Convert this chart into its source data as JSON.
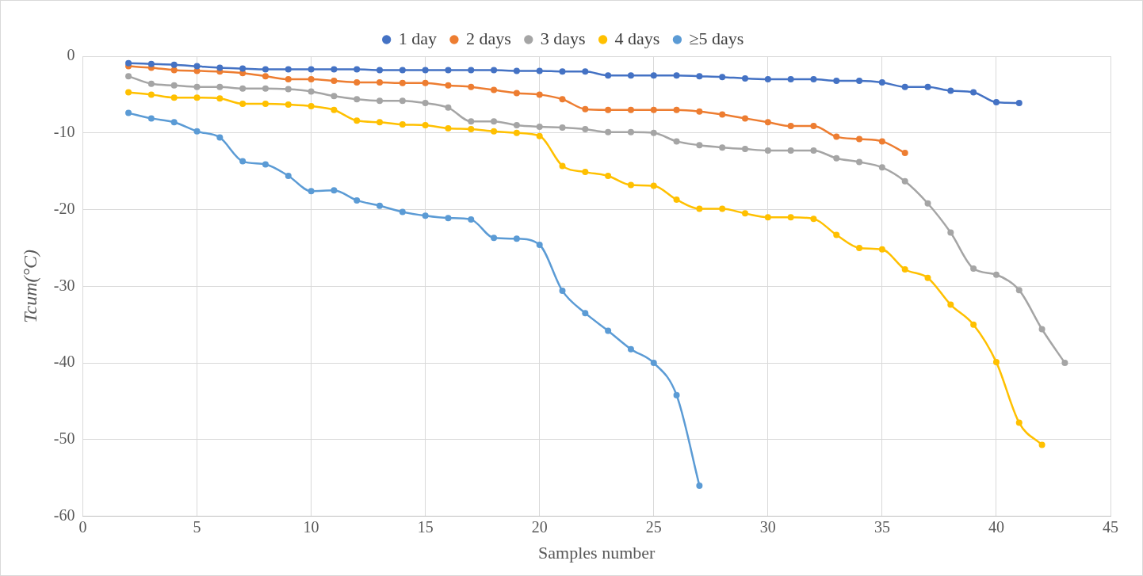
{
  "chart_data": {
    "type": "line",
    "xlabel": "Samples number",
    "ylabel": "Tcum(°C)",
    "xlim": [
      0,
      45
    ],
    "xticks": [
      0,
      5,
      10,
      15,
      20,
      25,
      30,
      35,
      40,
      45
    ],
    "ylim": [
      -60,
      0
    ],
    "yticks": [
      -60,
      -50,
      -40,
      -30,
      -20,
      -10,
      0
    ],
    "grid": true,
    "legend": "top",
    "marker": "circle",
    "line_style": "solid",
    "series": [
      {
        "name": "1 day",
        "color": "#4472c4",
        "x": [
          2,
          3,
          4,
          5,
          6,
          7,
          8,
          9,
          10,
          11,
          12,
          13,
          14,
          15,
          16,
          17,
          18,
          19,
          20,
          21,
          22,
          23,
          24,
          25,
          26,
          27,
          28,
          29,
          30,
          31,
          32,
          33,
          34,
          35,
          36,
          37,
          38,
          39,
          40,
          41
        ],
        "values": [
          -0.9,
          -1,
          -1.1,
          -1.3,
          -1.5,
          -1.6,
          -1.7,
          -1.7,
          -1.7,
          -1.7,
          -1.7,
          -1.8,
          -1.8,
          -1.8,
          -1.8,
          -1.8,
          -1.8,
          -1.9,
          -1.9,
          -2,
          -2,
          -2.5,
          -2.5,
          -2.5,
          -2.5,
          -2.6,
          -2.7,
          -2.9,
          -3,
          -3,
          -3,
          -3.2,
          -3.2,
          -3.4,
          -4,
          -4,
          -4.5,
          -4.7,
          -6,
          -6.1
        ]
      },
      {
        "name": "2 days",
        "color": "#ed7d31",
        "x": [
          2,
          3,
          4,
          5,
          6,
          7,
          8,
          9,
          10,
          11,
          12,
          13,
          14,
          15,
          16,
          17,
          18,
          19,
          20,
          21,
          22,
          23,
          24,
          25,
          26,
          27,
          28,
          29,
          30,
          31,
          32,
          33,
          34,
          35,
          36
        ],
        "values": [
          -1.3,
          -1.5,
          -1.8,
          -1.9,
          -2,
          -2.2,
          -2.6,
          -3,
          -3,
          -3.2,
          -3.4,
          -3.4,
          -3.5,
          -3.5,
          -3.8,
          -4,
          -4.4,
          -4.8,
          -5,
          -5.6,
          -6.9,
          -7,
          -7,
          -7,
          -7,
          -7.2,
          -7.6,
          -8.1,
          -8.6,
          -9.1,
          -9.1,
          -10.5,
          -10.8,
          -11.1,
          -12.6
        ]
      },
      {
        "name": "3 days",
        "color": "#a5a5a5",
        "x": [
          2,
          3,
          4,
          5,
          6,
          7,
          8,
          9,
          10,
          11,
          12,
          13,
          14,
          15,
          16,
          17,
          18,
          19,
          20,
          21,
          22,
          23,
          24,
          25,
          26,
          27,
          28,
          29,
          30,
          31,
          32,
          33,
          34,
          35,
          36,
          37,
          38,
          39,
          40,
          41,
          42,
          43
        ],
        "values": [
          -2.6,
          -3.6,
          -3.8,
          -4,
          -4,
          -4.2,
          -4.2,
          -4.3,
          -4.6,
          -5.2,
          -5.6,
          -5.8,
          -5.8,
          -6.1,
          -6.7,
          -8.5,
          -8.5,
          -9,
          -9.2,
          -9.3,
          -9.5,
          -9.9,
          -9.9,
          -10,
          -11.1,
          -11.6,
          -11.9,
          -12.1,
          -12.3,
          -12.3,
          -12.3,
          -13.3,
          -13.8,
          -14.5,
          -16.3,
          -19.2,
          -23,
          -27.7,
          -28.5,
          -30.5,
          -35.6,
          -40
        ]
      },
      {
        "name": "4 days",
        "color": "#ffc000",
        "x": [
          2,
          3,
          4,
          5,
          6,
          7,
          8,
          9,
          10,
          11,
          12,
          13,
          14,
          15,
          16,
          17,
          18,
          19,
          20,
          21,
          22,
          23,
          24,
          25,
          26,
          27,
          28,
          29,
          30,
          31,
          32,
          33,
          34,
          35,
          36,
          37,
          38,
          39,
          40,
          41,
          42
        ],
        "values": [
          -4.7,
          -5,
          -5.4,
          -5.4,
          -5.5,
          -6.2,
          -6.2,
          -6.3,
          -6.5,
          -7,
          -8.4,
          -8.6,
          -8.9,
          -9,
          -9.4,
          -9.5,
          -9.8,
          -10,
          -10.4,
          -14.3,
          -15.1,
          -15.6,
          -16.8,
          -16.9,
          -18.7,
          -19.9,
          -19.9,
          -20.5,
          -21,
          -21,
          -21.2,
          -23.3,
          -25,
          -25.2,
          -27.8,
          -28.9,
          -32.4,
          -35,
          -39.9,
          -47.8,
          -50.7
        ]
      },
      {
        "name": "≥5 days",
        "color": "#5b9bd5",
        "x": [
          2,
          3,
          4,
          5,
          6,
          7,
          8,
          9,
          10,
          11,
          12,
          13,
          14,
          15,
          16,
          17,
          18,
          19,
          20,
          21,
          22,
          23,
          24,
          25,
          26,
          27
        ],
        "values": [
          -7.4,
          -8.1,
          -8.6,
          -9.8,
          -10.6,
          -13.7,
          -14.1,
          -15.6,
          -17.6,
          -17.5,
          -18.8,
          -19.5,
          -20.3,
          -20.8,
          -21.1,
          -21.3,
          -23.7,
          -23.8,
          -24.6,
          -30.6,
          -33.5,
          -35.8,
          -38.2,
          -40,
          -44.2,
          -56
        ]
      }
    ]
  }
}
